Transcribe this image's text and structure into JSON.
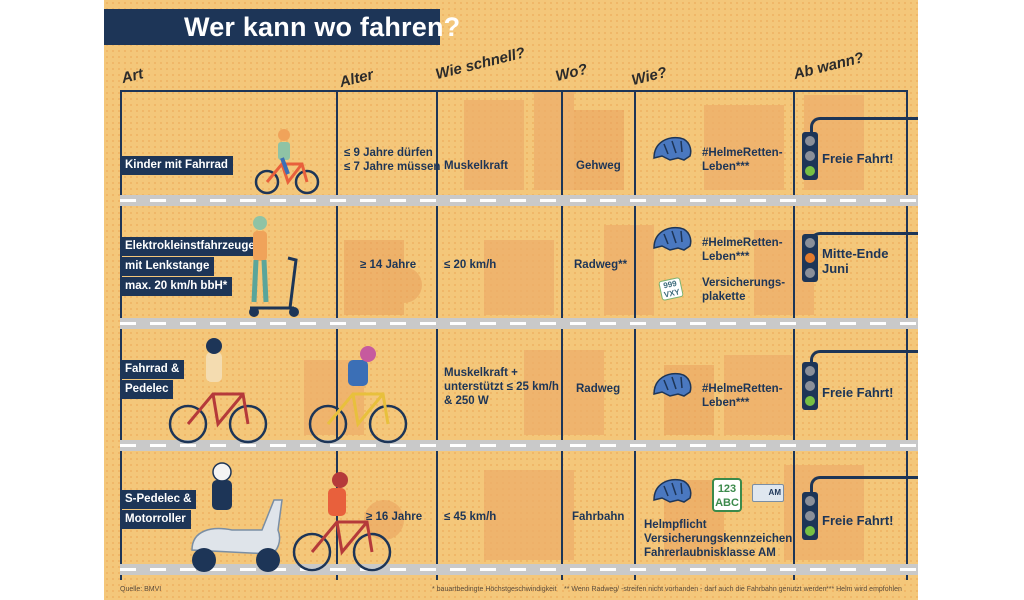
{
  "title": "Wer kann wo fahren?",
  "headers": {
    "art": "Art",
    "alter": "Alter",
    "wie_schnell": "Wie schnell?",
    "wo": "Wo?",
    "wie": "Wie?",
    "ab_wann": "Ab wann?"
  },
  "rows": [
    {
      "label_lines": [
        "Kinder mit Fahrrad"
      ],
      "alter": "≤ 9 Jahre dürfen\n≤ 7 Jahre müssen",
      "wie_schnell": "Muskelkraft",
      "wo": "Gehweg",
      "wie": "#HelmeRetten-\nLeben***",
      "ab_wann": "Freie Fahrt!"
    },
    {
      "label_lines": [
        "Elektrokleinstfahrzeuge",
        "mit Lenkstange",
        "max. 20 km/h bbH*"
      ],
      "alter": "≥ 14 Jahre",
      "wie_schnell": "≤ 20 km/h",
      "wo": "Radweg**",
      "wie": "#HelmeRetten-\nLeben***",
      "wie_extra": "Versicherungs-\nplakette",
      "sticker_text": "999\nVXY",
      "ab_wann": "Mitte-Ende\nJuni"
    },
    {
      "label_lines": [
        "Fahrrad &",
        "Pedelec"
      ],
      "alter": "",
      "wie_schnell": "Muskelkraft +\nunterstützt ≤ 25 km/h\n& 250 W",
      "wo": "Radweg",
      "wie": "#HelmeRetten-\nLeben***",
      "ab_wann": "Freie Fahrt!"
    },
    {
      "label_lines": [
        "S-Pedelec &",
        "Motorroller"
      ],
      "alter": "≥ 16 Jahre",
      "wie_schnell": "≤ 45 km/h",
      "wo": "Fahrbahn",
      "wie": "Helmpflicht\nVersicherungskennzeichen\nFahrerlaubnisklasse AM",
      "plate_text": "123\nABC",
      "license_text": "AM",
      "ab_wann": "Freie Fahrt!"
    }
  ],
  "footnotes": {
    "source": "Quelle: BMVI",
    "f1": "* bauartbedingte Höchstgeschwindigkeit",
    "f2": "** Wenn Radweg/ -streifen nicht vorhanden - darf auch die Fahrbahn genutzt werden",
    "f3": "*** Helm wird empfohlen"
  },
  "colors": {
    "navy": "#1d3557",
    "background": "#f4c77a",
    "helmet": "#4a78c0",
    "green_lamp": "#76c043",
    "orange_lamp": "#e37b2c"
  },
  "icons": [
    "helmet-icon",
    "traffic-light-icon",
    "insurance-sticker-icon",
    "license-plate-icon",
    "driver-license-icon"
  ]
}
